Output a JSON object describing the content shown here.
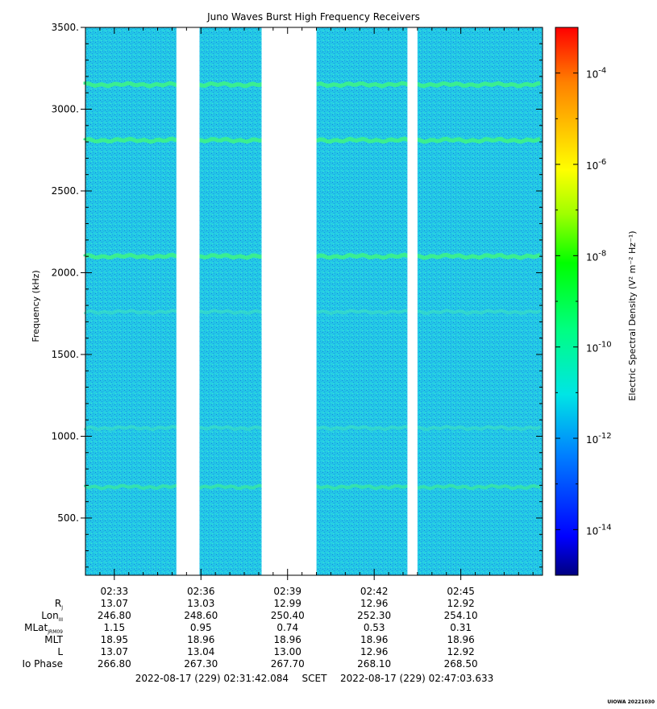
{
  "chart_data": {
    "type": "heatmap",
    "title": "Juno Waves Burst High Frequency Receivers",
    "ylabel": "Frequency (kHz)",
    "ylim": [
      150,
      3500
    ],
    "yticks": [
      "500.",
      "1000.",
      "1500.",
      "2000.",
      "2500.",
      "3000.",
      "3500."
    ],
    "ytick_values": [
      500,
      1000,
      1500,
      2000,
      2500,
      3000,
      3500
    ],
    "x_range_minutes": [
      2.0,
      17.83
    ],
    "x_tick_labels": [
      "02:33",
      "02:36",
      "02:39",
      "02:42",
      "02:45"
    ],
    "x_tick_values_minutes": [
      3,
      6,
      9,
      12,
      15
    ],
    "data_gaps_minutes": [
      [
        5.15,
        5.95
      ],
      [
        8.1,
        10.0
      ],
      [
        13.15,
        13.5
      ]
    ],
    "emission_bands_khz": [
      {
        "freq": 3150,
        "strength": "strong"
      },
      {
        "freq": 2810,
        "strength": "strong"
      },
      {
        "freq": 2100,
        "strength": "strong"
      },
      {
        "freq": 1760,
        "strength": "weak"
      },
      {
        "freq": 1050,
        "strength": "weak"
      },
      {
        "freq": 690,
        "strength": "medium"
      }
    ],
    "background_level": "1e-12 to 1e-11",
    "colorbar": {
      "label": "Electric Spectral Density (V² m⁻² Hz⁻¹)",
      "scale": "log",
      "range_exponent": [
        -15,
        -3
      ],
      "tick_exponents": [
        -4,
        -6,
        -8,
        -10,
        -12,
        -14
      ],
      "colors": [
        "#00008b",
        "#0000ff",
        "#0080ff",
        "#00e0e0",
        "#00ff80",
        "#00d000",
        "#80ff00",
        "#ffff00",
        "#ffc000",
        "#ff8000",
        "#ff3000",
        "#ff0000"
      ]
    },
    "ephemeris": {
      "row_labels": [
        "R",
        "Lon",
        "MLat",
        "MLT",
        "L",
        "Io Phase"
      ],
      "row_subscripts": [
        "J",
        "III",
        "JRM09",
        "",
        "",
        ""
      ],
      "values": [
        [
          "13.07",
          "13.03",
          "12.99",
          "12.96",
          "12.92"
        ],
        [
          "246.80",
          "248.60",
          "250.40",
          "252.30",
          "254.10"
        ],
        [
          "1.15",
          "0.95",
          "0.74",
          "0.53",
          "0.31"
        ],
        [
          "18.95",
          "18.96",
          "18.96",
          "18.96",
          "18.96"
        ],
        [
          "13.07",
          "13.04",
          "13.00",
          "12.96",
          "12.92"
        ],
        [
          "266.80",
          "267.30",
          "267.70",
          "268.10",
          "268.50"
        ]
      ]
    },
    "time_range": {
      "start": "2022-08-17 (229) 02:31:42.084",
      "scet": "SCET",
      "end": "2022-08-17 (229) 02:47:03.633"
    },
    "credit": "UIOWA 20221030"
  }
}
